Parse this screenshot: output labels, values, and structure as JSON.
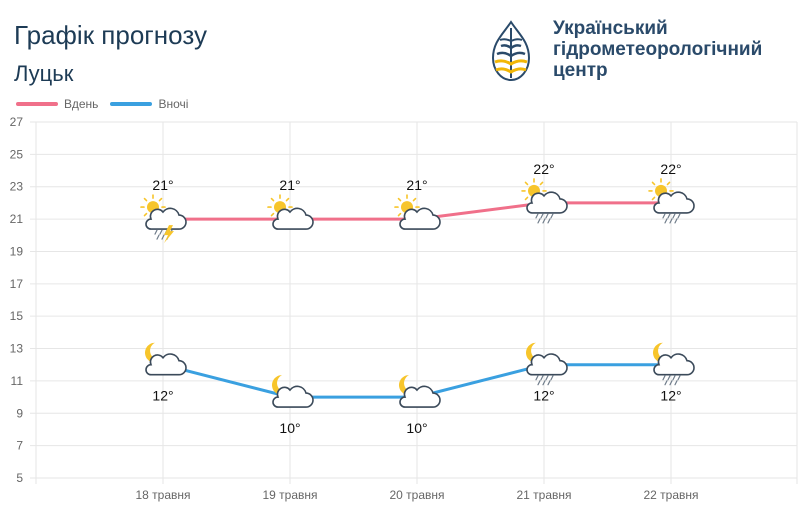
{
  "header": {
    "title": "Графік прогнозу",
    "city": "Луцьк",
    "org_line1": "Український",
    "org_line2": "гідрометеорологічний",
    "org_line3": "центр"
  },
  "colors": {
    "day": "#f0708a",
    "night": "#3aa0e0",
    "grid": "#e6e6e6",
    "axis_text": "#666666"
  },
  "chart_data": {
    "type": "line",
    "categories": [
      "18 травня",
      "19 травня",
      "20 травня",
      "21 травня",
      "22 травня"
    ],
    "series": [
      {
        "name": "Вдень",
        "values": [
          21,
          21,
          21,
          22,
          22
        ],
        "labels": [
          "21°",
          "21°",
          "21°",
          "22°",
          "22°"
        ],
        "icons": [
          "sun-cloud-thunder-rain-icon",
          "sun-cloud-icon",
          "sun-cloud-icon",
          "sun-cloud-rain-icon",
          "sun-cloud-rain-icon"
        ]
      },
      {
        "name": "Вночі",
        "values": [
          12,
          10,
          10,
          12,
          12
        ],
        "labels": [
          "12°",
          "10°",
          "10°",
          "12°",
          "12°"
        ],
        "icons": [
          "moon-cloud-icon",
          "moon-cloud-icon",
          "moon-cloud-icon",
          "moon-cloud-rain-icon",
          "moon-cloud-rain-icon"
        ]
      }
    ],
    "ylim": [
      5,
      27
    ],
    "yticks": [
      5,
      7,
      9,
      11,
      13,
      15,
      17,
      19,
      21,
      23,
      25,
      27
    ],
    "grid": true,
    "legend": "top-left"
  }
}
